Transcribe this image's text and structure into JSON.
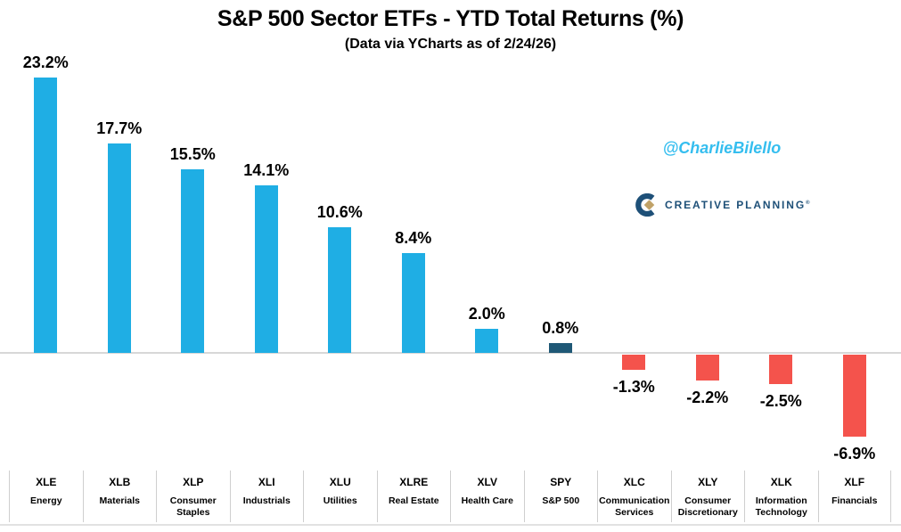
{
  "branding": {
    "watermark": "@CharlieBilello",
    "watermark_color": "#35BEEF",
    "logo_text": "CREATIVE PLANNING",
    "logo_mark": "®",
    "logo_navy": "#1E5078",
    "logo_diamond_gold": "#C0A268"
  },
  "chart_data": {
    "type": "bar",
    "title": "S&P 500 Sector ETFs - YTD Total Returns (%)",
    "subtitle": "(Data via YCharts as of 2/24/26)",
    "xlabel": "",
    "ylabel": "",
    "ylim": [
      -8,
      24
    ],
    "grid": false,
    "legend": null,
    "zero_axis_color": "#D7D7D7",
    "colors": {
      "positive": "#1FAEE4",
      "benchmark": "#1F5876",
      "negative": "#F4534C"
    },
    "bars": [
      {
        "ticker": "XLE",
        "name": "Energy",
        "value": 23.2,
        "label": "23.2%",
        "role": "positive"
      },
      {
        "ticker": "XLB",
        "name": "Materials",
        "value": 17.7,
        "label": "17.7%",
        "role": "positive"
      },
      {
        "ticker": "XLP",
        "name": "Consumer Staples",
        "value": 15.5,
        "label": "15.5%",
        "role": "positive"
      },
      {
        "ticker": "XLI",
        "name": "Industrials",
        "value": 14.1,
        "label": "14.1%",
        "role": "positive"
      },
      {
        "ticker": "XLU",
        "name": "Utilities",
        "value": 10.6,
        "label": "10.6%",
        "role": "positive"
      },
      {
        "ticker": "XLRE",
        "name": "Real Estate",
        "value": 8.4,
        "label": "8.4%",
        "role": "positive"
      },
      {
        "ticker": "XLV",
        "name": "Health Care",
        "value": 2.0,
        "label": "2.0%",
        "role": "positive"
      },
      {
        "ticker": "SPY",
        "name": "S&P 500",
        "value": 0.8,
        "label": "0.8%",
        "role": "benchmark"
      },
      {
        "ticker": "XLC",
        "name": "Communication Services",
        "value": -1.3,
        "label": "-1.3%",
        "role": "negative"
      },
      {
        "ticker": "XLY",
        "name": "Consumer Discretionary",
        "value": -2.2,
        "label": "-2.2%",
        "role": "negative"
      },
      {
        "ticker": "XLK",
        "name": "Information Technology",
        "value": -2.5,
        "label": "-2.5%",
        "role": "negative"
      },
      {
        "ticker": "XLF",
        "name": "Financials",
        "value": -6.9,
        "label": "-6.9%",
        "role": "negative"
      }
    ]
  }
}
